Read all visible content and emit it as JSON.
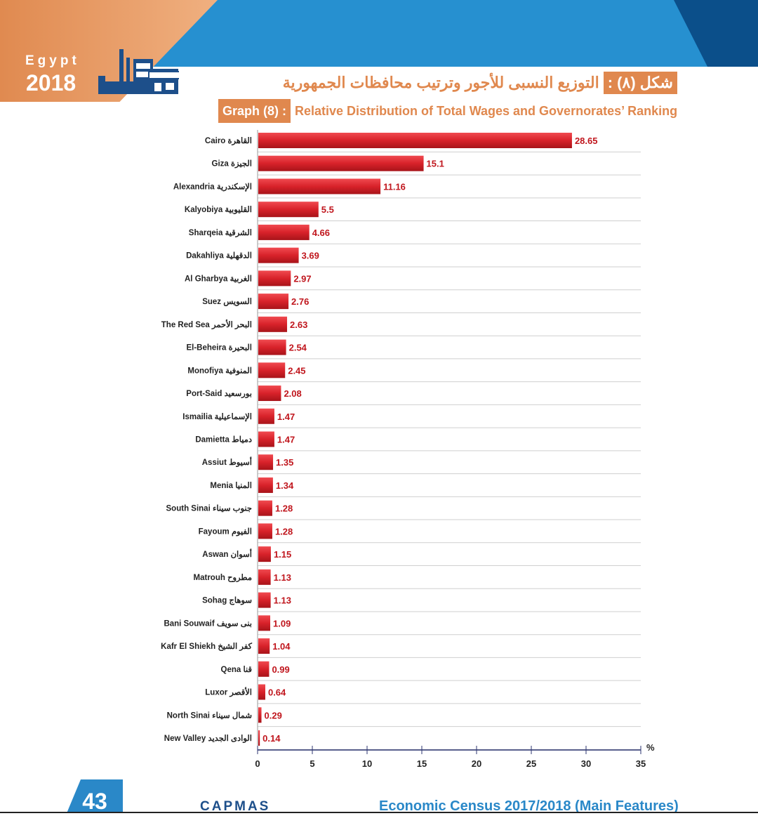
{
  "header": {
    "brand_country": "Egypt",
    "brand_year": "2018",
    "title_ar_badge": "شكل (٨) :",
    "title_ar": "التوزيع النسبى للأجور وترتيب محافظات الجمهورية",
    "title_en_badge": "Graph (8) :",
    "title_en": "Relative Distribution of Total Wages and Governorates’ Ranking"
  },
  "footer": {
    "page_number": "43",
    "org": "CAPMAS",
    "publication": "Economic Census 2017/2018 (Main Features)"
  },
  "colors": {
    "bar": "#d8222a",
    "label": "#c0161d",
    "accent": "#e0884e",
    "axis": "#2c3570"
  },
  "chart_data": {
    "type": "bar",
    "orientation": "horizontal",
    "title": "Relative Distribution of Total Wages and Governorates’ Ranking",
    "xlabel": "%",
    "xlim": [
      0,
      35
    ],
    "xticks": [
      0,
      5,
      10,
      15,
      20,
      25,
      30,
      35
    ],
    "categories": [
      "Cairo",
      "Giza",
      "Alexandria",
      "Kalyobiya",
      "Sharqeia",
      "Dakahliya",
      "Al Gharbya",
      "Suez",
      "The Red Sea",
      "El-Beheira",
      "Monofiya",
      "Port-Said",
      "Ismailia",
      "Damietta",
      "Assiut",
      "Menia",
      "South Sinai",
      "Fayoum",
      "Aswan",
      "Matrouh",
      "Sohag",
      "Bani Souwaif",
      "Kafr El Shiekh",
      "Qena",
      "Luxor",
      "North Sinai",
      "New Valley"
    ],
    "categories_ar": [
      "القاهرة",
      "الجيزة",
      "الإسكندرية",
      "القليوبية",
      "الشرقية",
      "الدقهلية",
      "الغربية",
      "السويس",
      "البحر الأحمر",
      "البحيرة",
      "المنوفية",
      "بورسعيد",
      "الإسماعيلية",
      "دمياط",
      "أسيوط",
      "المنيا",
      "جنوب سيناء",
      "الفيوم",
      "أسوان",
      "مطروح",
      "سوهاج",
      "بنى سويف",
      "كفر الشيخ",
      "قنا",
      "الأقصر",
      "شمال سيناء",
      "الوادى الجديد"
    ],
    "values": [
      28.65,
      15.1,
      11.16,
      5.5,
      4.66,
      3.69,
      2.97,
      2.76,
      2.63,
      2.54,
      2.45,
      2.08,
      1.47,
      1.47,
      1.35,
      1.34,
      1.28,
      1.28,
      1.15,
      1.13,
      1.13,
      1.09,
      1.04,
      0.99,
      0.64,
      0.29,
      0.14
    ],
    "value_labels": [
      "28.65",
      "15.1",
      "11.16",
      "5.5",
      "4.66",
      "3.69",
      "2.97",
      "2.76",
      "2.63",
      "2.54",
      "2.45",
      "2.08",
      "1.47",
      "1.47",
      "1.35",
      "1.34",
      "1.28",
      "1.28",
      "1.15",
      "1.13",
      "1.13",
      "1.09",
      "1.04",
      "0.99",
      "0.64",
      "0.29",
      "0.14"
    ],
    "grid": "horizontal-row-separators",
    "legend": "none"
  }
}
